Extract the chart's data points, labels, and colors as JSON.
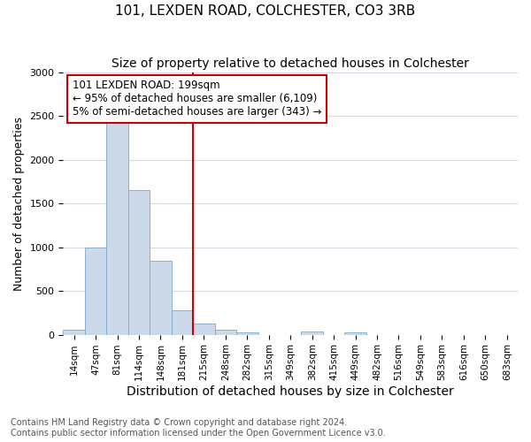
{
  "title1": "101, LEXDEN ROAD, COLCHESTER, CO3 3RB",
  "title2": "Size of property relative to detached houses in Colchester",
  "xlabel": "Distribution of detached houses by size in Colchester",
  "ylabel": "Number of detached properties",
  "footnote": "Contains HM Land Registry data © Crown copyright and database right 2024.\nContains public sector information licensed under the Open Government Licence v3.0.",
  "bar_color": "#ccd9e8",
  "bar_edge_color": "#7aaac8",
  "categories": [
    "14sqm",
    "47sqm",
    "81sqm",
    "114sqm",
    "148sqm",
    "181sqm",
    "215sqm",
    "248sqm",
    "282sqm",
    "315sqm",
    "349sqm",
    "382sqm",
    "415sqm",
    "449sqm",
    "482sqm",
    "516sqm",
    "549sqm",
    "583sqm",
    "616sqm",
    "650sqm",
    "683sqm"
  ],
  "values": [
    60,
    1000,
    2450,
    1650,
    840,
    275,
    130,
    55,
    30,
    0,
    0,
    40,
    0,
    25,
    0,
    0,
    0,
    0,
    0,
    0,
    0
  ],
  "vline_x": 6.0,
  "vline_color": "#cc0000",
  "annotation_text": "101 LEXDEN ROAD: 199sqm\n← 95% of detached houses are smaller (6,109)\n5% of semi-detached houses are larger (343) →",
  "annotation_box_color": "#ffffff",
  "annotation_box_edge": "#cc0000",
  "ylim": [
    0,
    3000
  ],
  "yticks": [
    0,
    500,
    1000,
    1500,
    2000,
    2500,
    3000
  ],
  "bg_color": "#ffffff",
  "grid_color": "#d0dce8",
  "title1_fontsize": 11,
  "title2_fontsize": 10,
  "xlabel_fontsize": 10,
  "ylabel_fontsize": 9,
  "annotation_fontsize": 8.5,
  "footnote_fontsize": 7
}
